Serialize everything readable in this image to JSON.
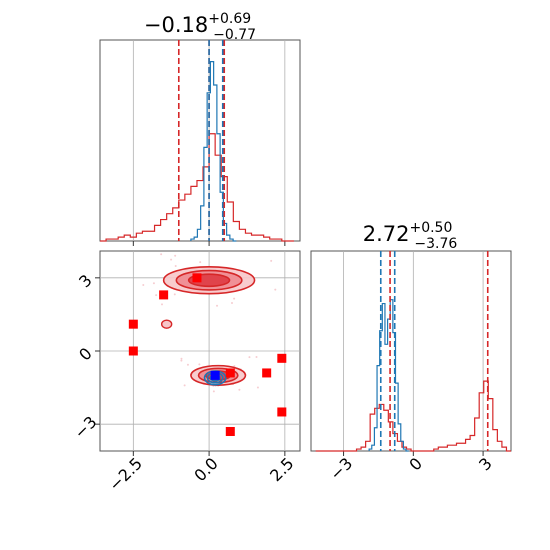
{
  "chart_data": {
    "type": "corner",
    "grid": true,
    "parameters": [
      {
        "title_median": "−0.18",
        "title_plus": "+0.69",
        "title_minus": "−0.77"
      },
      {
        "title_median": "2.72",
        "title_plus": "+0.50",
        "title_minus": "−3.76"
      }
    ],
    "xlim_p1": [
      -3.6,
      3.0
    ],
    "xlim_p2": [
      -4.4,
      4.2
    ],
    "ylim_p2": [
      -4.1,
      4.1
    ],
    "ticks_p1": [
      {
        "value": -2.5,
        "label": "−2.5"
      },
      {
        "value": 0.0,
        "label": "0.0"
      },
      {
        "value": 2.5,
        "label": "2.5"
      }
    ],
    "ticks_p2": [
      {
        "value": -3,
        "label": "−3"
      },
      {
        "value": 0,
        "label": "0"
      },
      {
        "value": 3,
        "label": "3"
      }
    ],
    "colors": {
      "red": "#d62728",
      "blue": "#1f77b4",
      "marker_red": "#ff0000",
      "marker_blue": "#0000ff",
      "grid": "#b0b0b0"
    },
    "series": [
      {
        "color": "#d62728",
        "quantiles_p1": [
          -1.0,
          0.0,
          0.5
        ],
        "quantiles_p2": [
          -1.0,
          3.2
        ],
        "hist_p1_edges": [
          -3.6,
          2.8
        ],
        "hist_p1": [
          0.0,
          0.01,
          0.01,
          0.02,
          0.03,
          0.02,
          0.04,
          0.05,
          0.05,
          0.08,
          0.11,
          0.14,
          0.17,
          0.21,
          0.24,
          0.28,
          0.31,
          0.38,
          0.55,
          0.44,
          0.33,
          0.2,
          0.1,
          0.06,
          0.04,
          0.03,
          0.03,
          0.02,
          0.01,
          0.01,
          0.0,
          0.0
        ],
        "hist_p2_edges": [
          -4.2,
          4.2
        ],
        "hist_p2": [
          0,
          0,
          0,
          0,
          0,
          0,
          0,
          0,
          0.0,
          0.01,
          0.02,
          0.05,
          0.19,
          0.22,
          0.24,
          0.21,
          0.15,
          0.09,
          0.05,
          0.02,
          0.01,
          0.0,
          0.0,
          0.0,
          0.0,
          0.0,
          0.01,
          0.02,
          0.02,
          0.03,
          0.03,
          0.04,
          0.04,
          0.06,
          0.08,
          0.17,
          0.3,
          0.36,
          0.27,
          0.11,
          0.05,
          0.02,
          0.0
        ],
        "contour_modes": [
          {
            "x": 0.0,
            "y": 2.9,
            "sx": 1.5,
            "sy": 0.55
          },
          {
            "x": 0.3,
            "y": -1.0,
            "sx": 0.9,
            "sy": 0.4
          }
        ]
      },
      {
        "color": "#1f77b4",
        "quantiles_p1": [
          0.0,
          0.45
        ],
        "quantiles_p2": [
          -1.4,
          -0.8
        ],
        "hist_p1_edges": [
          -0.6,
          0.9
        ],
        "hist_p1": [
          0.01,
          0.02,
          0.06,
          0.18,
          0.48,
          0.76,
          0.92,
          0.8,
          0.55,
          0.25,
          0.09,
          0.03,
          0.01,
          0.0
        ],
        "hist_p2_edges": [
          -1.9,
          -0.2
        ],
        "hist_p2": [
          0.01,
          0.03,
          0.12,
          0.44,
          0.62,
          0.76,
          0.55,
          0.68,
          0.78,
          0.61,
          0.35,
          0.14,
          0.05,
          0.01,
          0.0
        ],
        "contour_modes": [
          {
            "x": 0.2,
            "y": -1.1,
            "sx": 0.35,
            "sy": 0.28
          }
        ]
      }
    ],
    "red_squares": [
      {
        "x": -1.5,
        "y": 2.3
      },
      {
        "x": -0.4,
        "y": 3.0
      },
      {
        "x": -2.5,
        "y": 1.1
      },
      {
        "x": -2.5,
        "y": 0.0
      },
      {
        "x": 2.4,
        "y": -0.3
      },
      {
        "x": 1.9,
        "y": -0.9
      },
      {
        "x": 0.7,
        "y": -0.9
      },
      {
        "x": 2.4,
        "y": -2.5
      },
      {
        "x": 0.7,
        "y": -3.3
      }
    ],
    "blue_square": {
      "x": 0.2,
      "y": -1.0
    }
  }
}
